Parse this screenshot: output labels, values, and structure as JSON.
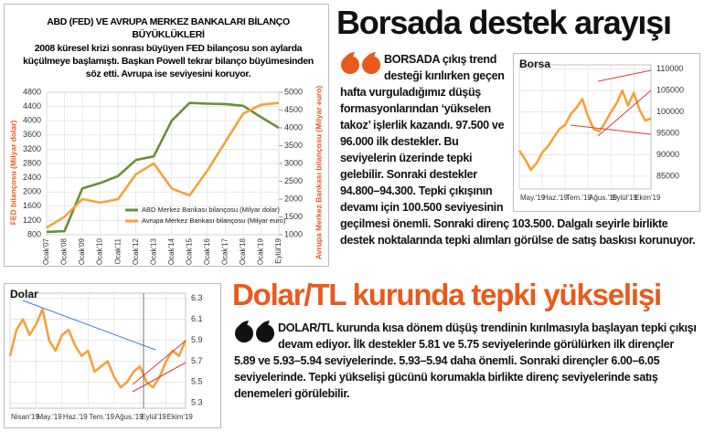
{
  "chart_data": [
    {
      "type": "line",
      "title": "ABD (FED) VE AVRUPA MERKEZ BANKALARI BİLANÇO BÜYÜKLÜKLERİ",
      "subtitle": "2008 küresel krizi sonrası büyüyen FED bilançosu son aylarda küçülmeye başlamıştı. Başkan Powell tekrar bilanço büyümesinden söz etti. Avrupa ise seviyesini koruyor.",
      "ylabel": "FED bilançosu (Milyar dolar)",
      "y2label": "Avrupa Merkez Bankası bilançosu (Milyar euro)",
      "categories": [
        "Ocak'07",
        "Ocak'08",
        "Ocak'09",
        "Ocak'10",
        "Ocak'11",
        "Ocak'12",
        "Ocak'13",
        "Ocak'14",
        "Ocak'15",
        "Ocak'16",
        "Ocak'17",
        "Ocak'18",
        "Ocak'19",
        "Eylül'19"
      ],
      "series": [
        {
          "name": "ABD Merkez Bankası bilançosu (Milyar dolar)",
          "color": "#6b8e3a",
          "axis": "y",
          "values": [
            880,
            900,
            2100,
            2250,
            2450,
            2900,
            3000,
            4000,
            4500,
            4480,
            4470,
            4420,
            4100,
            3800
          ]
        },
        {
          "name": "Avrupa Merkez Bankası bilançosu (Milyar euro)",
          "color": "#f4a23c",
          "axis": "y2",
          "values": [
            1200,
            1500,
            2000,
            1900,
            2000,
            2700,
            3000,
            2300,
            2100,
            2800,
            3600,
            4400,
            4650,
            4700
          ]
        }
      ],
      "ylim": [
        800,
        4800
      ],
      "yticks": [
        800,
        1200,
        1600,
        2000,
        2400,
        2800,
        3200,
        3600,
        4000,
        4400,
        4800
      ],
      "y2lim": [
        1000,
        5000
      ],
      "y2ticks": [
        1000,
        1500,
        2000,
        2500,
        3000,
        3500,
        4000,
        4500,
        5000
      ],
      "grid": true
    },
    {
      "type": "line",
      "title": "Borsa",
      "color": "#f4a23c",
      "categories": [
        "May.'19",
        null,
        null,
        null,
        "Haz.'19",
        null,
        null,
        null,
        "Tem.'19",
        null,
        null,
        null,
        "Ağus.'19",
        null,
        null,
        null,
        "Eylül'19",
        null,
        null,
        null,
        "Ekim'19",
        null,
        null,
        null
      ],
      "values": [
        91000,
        89000,
        86500,
        88000,
        90500,
        92000,
        94000,
        96000,
        97000,
        99500,
        101000,
        103000,
        99000,
        96000,
        95500,
        97500,
        100000,
        102000,
        105000,
        101500,
        104500,
        100500,
        98000,
        98500
      ],
      "ylim": [
        82000,
        111000
      ],
      "yticks": [
        85000,
        90000,
        95000,
        100000,
        105000,
        110000
      ],
      "grid": true
    },
    {
      "type": "line",
      "title": "Dolar",
      "color": "#f4a23c",
      "categories": [
        "Nisan'19",
        null,
        null,
        null,
        "May.'19",
        null,
        null,
        null,
        "Haz.'19",
        null,
        null,
        null,
        "Tem.'19",
        null,
        null,
        null,
        "Ağus.'19",
        null,
        null,
        null,
        "Eylül'19",
        null,
        null,
        null,
        "Ekim'19",
        null,
        null,
        null
      ],
      "values": [
        5.75,
        6.0,
        6.1,
        5.95,
        6.05,
        6.2,
        5.9,
        5.8,
        5.95,
        6.0,
        5.85,
        5.75,
        5.8,
        5.6,
        5.65,
        5.7,
        5.55,
        5.45,
        5.5,
        5.6,
        5.65,
        5.5,
        5.45,
        5.55,
        5.7,
        5.8,
        5.75,
        5.9
      ],
      "ylim": [
        5.25,
        6.35
      ],
      "yticks": [
        5.3,
        5.5,
        5.7,
        5.9,
        6.1,
        6.3
      ],
      "grid": true
    }
  ],
  "articles": [
    {
      "headline": "Borsada destek arayışı",
      "body": "BORSADA çıkış trend desteği kırılırken geçen hafta vurguladığımız düşüş formasyonlarından ‘yükselen takoz’ işlerlik kazandı. 97.500 ve 96.000 ilk destekler. Bu seviyelerin üzerinde tepki gelebilir. Sonraki destekler 94.800–94.300. Tepki çıkışının devamı için 100.500 seviyesinin geçilmesi önemli. Sonraki direnç 103.500. Dalgalı seyirle birlikte destek noktalarında tepki alımları görülse de satış baskısı korunuyor."
    },
    {
      "headline": "Dolar/TL kurunda tepki yükselişi",
      "body": "DOLAR/TL kurunda kısa dönem düşüş trendinin kırılmasıyla başlayan tepki çıkışı devam ediyor. İlk destekler 5.81 ve 5.75 seviyelerinde görülürken ilk dirençler 5.89 ve 5.93–5.94 seviyelerinde. 5.93–5.94 daha önemli. Sonraki dirençler 6.00–6.05 seviyelerinde. Tepki yükselişi gücünü korumakla birlikte direnç seviyelerinde satış denemeleri görülebilir."
    }
  ]
}
